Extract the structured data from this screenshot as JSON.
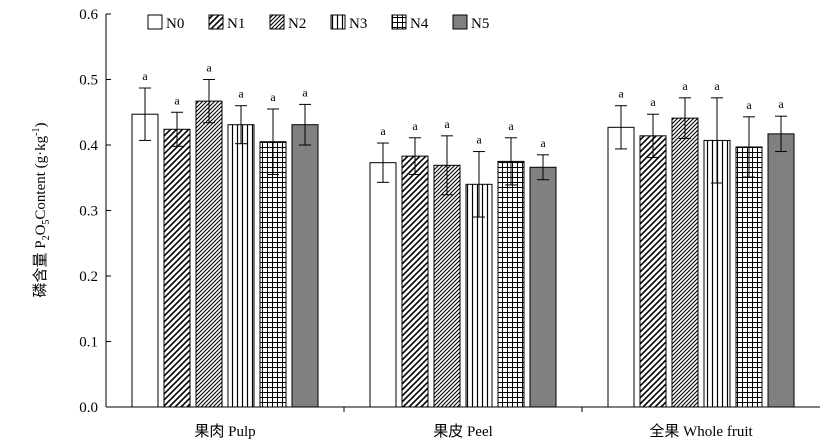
{
  "chart_data": {
    "type": "bar",
    "ylabel": {
      "prefix": "磷含量 P",
      "sub1": "2",
      "mid": "O",
      "sub2": "5",
      "suffix_main": "Content (g·kg",
      "sup": "-1",
      "close": ")"
    },
    "ylim": [
      0,
      0.6
    ],
    "yticks": [
      "0.0",
      "0.1",
      "0.2",
      "0.3",
      "0.4",
      "0.5",
      "0.6"
    ],
    "categories": [
      "果肉 Pulp",
      "果皮 Peel",
      "全果 Whole fruit"
    ],
    "legend_position": "top-left",
    "series": [
      {
        "name": "N0",
        "pattern": "open",
        "values": [
          0.447,
          0.373,
          0.427
        ],
        "errors": [
          0.04,
          0.03,
          0.033
        ],
        "sig": [
          "a",
          "a",
          "a"
        ]
      },
      {
        "name": "N1",
        "pattern": "diagonal",
        "values": [
          0.424,
          0.383,
          0.414
        ],
        "errors": [
          0.026,
          0.028,
          0.033
        ],
        "sig": [
          "a",
          "a",
          "a"
        ]
      },
      {
        "name": "N2",
        "pattern": "diagonal-dense",
        "values": [
          0.467,
          0.369,
          0.441
        ],
        "errors": [
          0.033,
          0.045,
          0.031
        ],
        "sig": [
          "a",
          "a",
          "a"
        ]
      },
      {
        "name": "N3",
        "pattern": "vertical",
        "values": [
          0.431,
          0.34,
          0.407
        ],
        "errors": [
          0.029,
          0.05,
          0.065
        ],
        "sig": [
          "a",
          "a",
          "a"
        ]
      },
      {
        "name": "N4",
        "pattern": "grid",
        "values": [
          0.405,
          0.375,
          0.397
        ],
        "errors": [
          0.05,
          0.036,
          0.046
        ],
        "sig": [
          "a",
          "a",
          "a"
        ]
      },
      {
        "name": "N5",
        "pattern": "solid",
        "values": [
          0.431,
          0.366,
          0.417
        ],
        "errors": [
          0.031,
          0.019,
          0.027
        ],
        "sig": [
          "a",
          "a",
          "a"
        ]
      }
    ],
    "colors": {
      "solid_fill": "#808080",
      "stroke": "#000000",
      "background": "#ffffff"
    }
  }
}
